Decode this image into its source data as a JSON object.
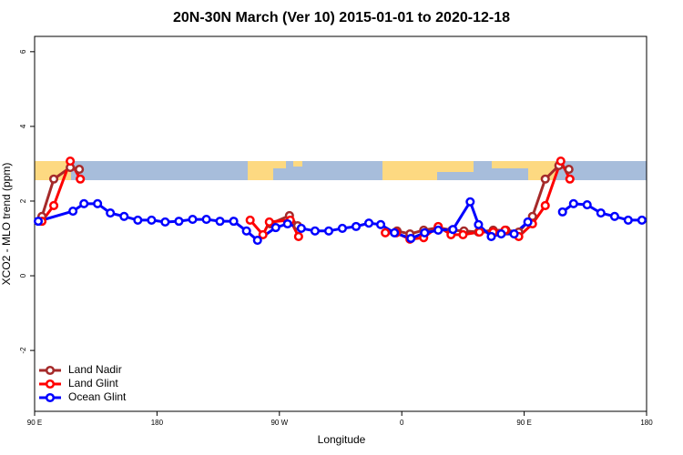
{
  "chart_data": {
    "type": "line",
    "title": "20N-30N March (Ver 10)   2015-01-01 to 2020-12-18",
    "xlabel": "Longitude",
    "ylabel": "XCO2 - MLO trend (ppm)",
    "xlim": [
      90,
      540
    ],
    "ylim": [
      -3.63,
      6.41
    ],
    "xticks": [
      {
        "value": 90,
        "label": "90 E"
      },
      180,
      {
        "value": 270,
        "label": "90 W"
      },
      {
        "value": 360,
        "label": "0"
      },
      {
        "value": 450,
        "label": "90 E"
      },
      {
        "value": 540,
        "label": "180"
      }
    ],
    "yticks": [
      -2,
      0,
      2,
      4,
      6
    ],
    "legend": "bottom-left",
    "series": [
      {
        "name": "Land Nadir",
        "color": "#a52a2a",
        "x": [
          95.4,
          104.1,
          116.2,
          122.9,
          null,
          263.3,
          277.4,
          283.4,
          null,
          356.5,
          366.0,
          376.1,
          386.8,
          396.9,
          405.7,
          416.4,
          427.2,
          436.6,
          446.0,
          456.1,
          465.5,
          475.5,
          482.9
        ],
        "values": [
          1.59,
          2.59,
          2.9,
          2.85,
          null,
          1.39,
          1.61,
          1.34,
          null,
          1.2,
          1.12,
          1.22,
          1.29,
          1.22,
          1.2,
          1.17,
          1.22,
          1.22,
          1.17,
          1.59,
          2.59,
          2.95,
          2.85
        ]
      },
      {
        "name": "Land Glint",
        "color": "#ff0000",
        "x": [
          95.4,
          104.1,
          116.2,
          123.6,
          null,
          248.5,
          257.9,
          262.6,
          278.0,
          284.1,
          null,
          347.9,
          355.9,
          366.0,
          376.1,
          386.8,
          396.2,
          405.0,
          417.1,
          427.2,
          435.9,
          446.0,
          456.1,
          465.5,
          476.9,
          483.6
        ],
        "values": [
          1.46,
          1.88,
          3.07,
          2.59,
          null,
          1.49,
          1.1,
          1.44,
          1.49,
          1.05,
          null,
          1.15,
          1.15,
          0.98,
          1.02,
          1.32,
          1.1,
          1.1,
          1.17,
          1.17,
          1.22,
          1.05,
          1.39,
          1.88,
          3.07,
          2.59
        ]
      },
      {
        "name": "Ocean Glint",
        "color": "#0000ff",
        "x": [
          92.7,
          118.2,
          126.3,
          136.3,
          145.7,
          155.8,
          165.9,
          176.0,
          186.0,
          196.1,
          206.2,
          216.3,
          226.3,
          236.4,
          245.8,
          253.9,
          267.3,
          276.0,
          286.1,
          296.2,
          306.3,
          316.3,
          326.4,
          335.8,
          344.5,
          354.6,
          366.7,
          376.8,
          386.8,
          397.6,
          410.3,
          416.4,
          425.8,
          433.1,
          442.6,
          452.7,
          null,
          478.2,
          486.3,
          496.3,
          506.4,
          516.5,
          526.5,
          536.6
        ],
        "values": [
          1.46,
          1.73,
          1.93,
          1.93,
          1.68,
          1.59,
          1.49,
          1.49,
          1.44,
          1.46,
          1.51,
          1.51,
          1.46,
          1.46,
          1.2,
          0.95,
          1.29,
          1.39,
          1.27,
          1.2,
          1.2,
          1.27,
          1.32,
          1.41,
          1.37,
          1.15,
          1.0,
          1.15,
          1.22,
          1.24,
          1.98,
          1.37,
          1.05,
          1.12,
          1.12,
          1.44,
          null,
          1.71,
          1.93,
          1.9,
          1.68,
          1.59,
          1.49,
          1.49
        ]
      }
    ]
  }
}
